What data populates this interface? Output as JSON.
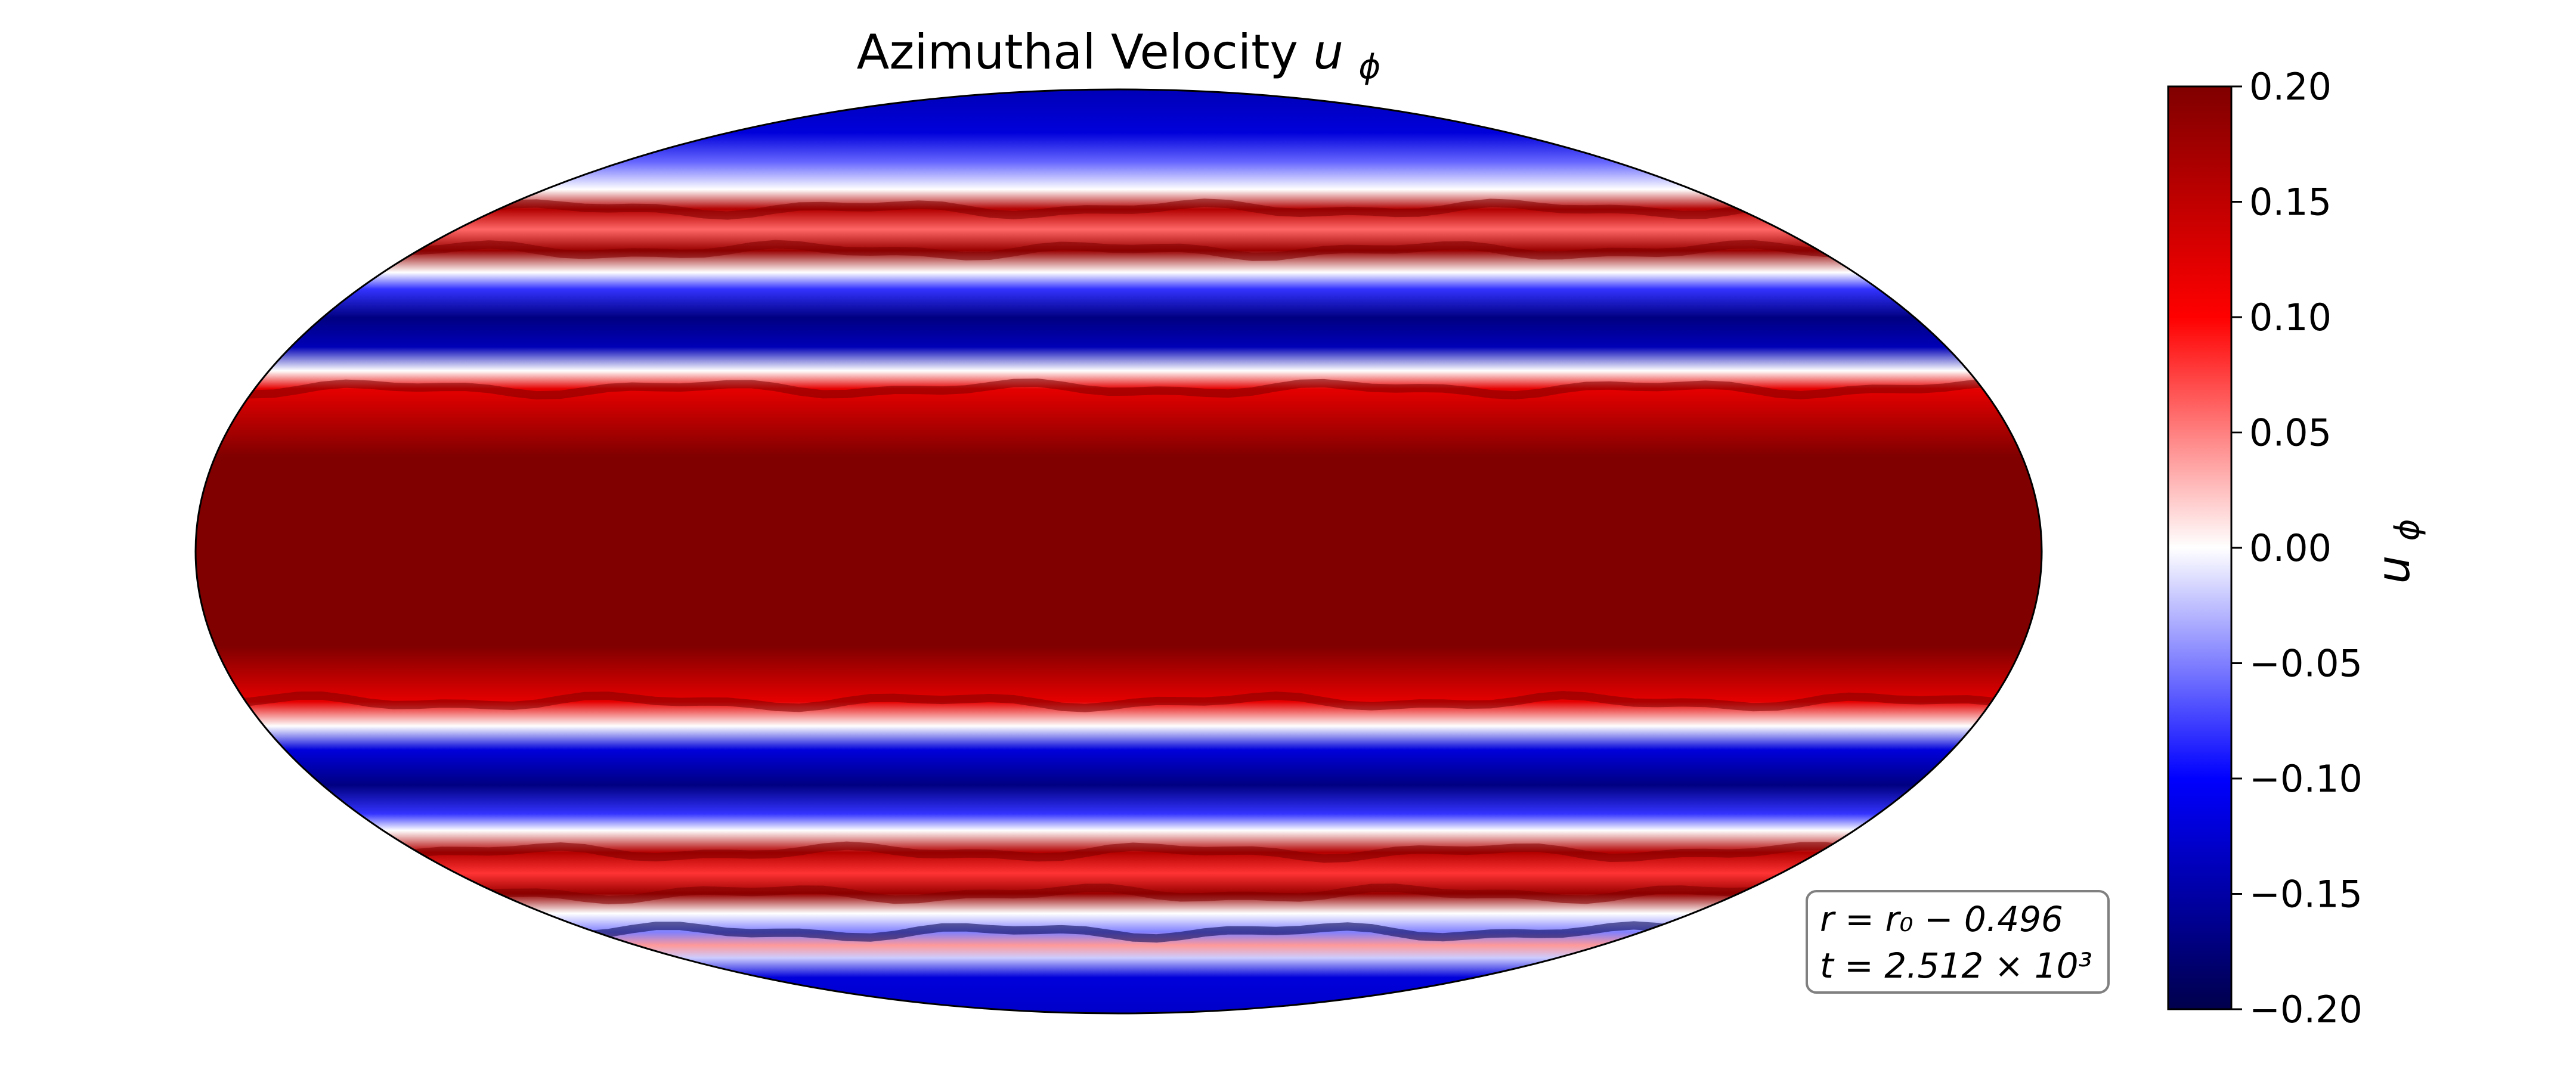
{
  "chart_data": {
    "type": "heatmap",
    "projection": "mollweide",
    "title": "Azimuthal Velocity",
    "title_symbol": "u",
    "title_subscript": "ϕ",
    "colormap": "seismic",
    "colors": {
      "min": "#00004c",
      "blue": "#0000ff",
      "white": "#ffffff",
      "red": "#ff0000",
      "max": "#800000"
    },
    "colorbar": {
      "label_symbol": "u",
      "label_subscript": "ϕ",
      "range": [
        -0.2,
        0.2
      ],
      "ticks": [
        0.2,
        0.15,
        0.1,
        0.05,
        0.0,
        -0.05,
        -0.1,
        -0.15,
        -0.2
      ],
      "tick_labels": [
        "0.20",
        "0.15",
        "0.10",
        "0.05",
        "0.00",
        "−0.05",
        "−0.10",
        "−0.15",
        "−0.20"
      ]
    },
    "latitude_bands": [
      {
        "lat": 90,
        "value": -0.14
      },
      {
        "lat": 75,
        "value": -0.12
      },
      {
        "lat": 68,
        "value": -0.06
      },
      {
        "lat": 62,
        "value": 0.0
      },
      {
        "lat": 58,
        "value": 0.16
      },
      {
        "lat": 54,
        "value": 0.06
      },
      {
        "lat": 50,
        "value": 0.18
      },
      {
        "lat": 46,
        "value": 0.0
      },
      {
        "lat": 43,
        "value": -0.08
      },
      {
        "lat": 38,
        "value": -0.17
      },
      {
        "lat": 33,
        "value": -0.14
      },
      {
        "lat": 29,
        "value": 0.0
      },
      {
        "lat": 26,
        "value": 0.12
      },
      {
        "lat": 15,
        "value": 0.2
      },
      {
        "lat": 0,
        "value": 0.21
      },
      {
        "lat": -15,
        "value": 0.2
      },
      {
        "lat": -24,
        "value": 0.12
      },
      {
        "lat": -28,
        "value": 0.0
      },
      {
        "lat": -32,
        "value": -0.12
      },
      {
        "lat": -38,
        "value": -0.17
      },
      {
        "lat": -43,
        "value": -0.08
      },
      {
        "lat": -46,
        "value": 0.0
      },
      {
        "lat": -50,
        "value": 0.16
      },
      {
        "lat": -54,
        "value": 0.08
      },
      {
        "lat": -58,
        "value": 0.18
      },
      {
        "lat": -62,
        "value": 0.0
      },
      {
        "lat": -66,
        "value": -0.05
      },
      {
        "lat": -69,
        "value": 0.04
      },
      {
        "lat": -72,
        "value": -0.02
      },
      {
        "lat": -77,
        "value": -0.12
      },
      {
        "lat": -90,
        "value": -0.13
      }
    ],
    "annotation": {
      "line1": "r = r₀ −  0.496",
      "line2": "t = 2.512 × 10³"
    }
  }
}
